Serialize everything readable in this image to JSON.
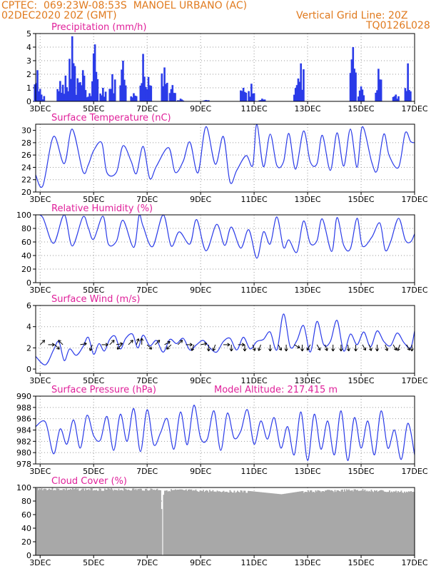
{
  "header": {
    "left_line1": "CPTEC:  069:23W-08:53S  MANOEL URBANO (AC)",
    "left_line2": "02DEC2020 20Z (GMT)",
    "right_line1": "Vertical Grid Line: 20Z",
    "right_line2": "TQ0126L028"
  },
  "colors": {
    "header": "#e07a1e",
    "title": "#e0209a",
    "series": "#2a3be8",
    "cloud": "#a8a8a8",
    "arrow": "#000000",
    "grid": "#9a9a9a"
  },
  "x_axis": {
    "day_start": 2.8333,
    "day_end": 17.0,
    "tick_days": [
      3,
      5,
      7,
      9,
      11,
      13,
      15,
      17
    ],
    "tick_labels": [
      "3DEC",
      "5DEC",
      "7DEC",
      "9DEC",
      "11DEC",
      "13DEC",
      "15DEC",
      "17DEC"
    ]
  },
  "panels": [
    {
      "key": "precip",
      "title": "Precipitation (mm/h)",
      "extra": "",
      "ymin": 0,
      "ymax": 5,
      "yticks": [
        0,
        1,
        2,
        3,
        4,
        5
      ]
    },
    {
      "key": "temp",
      "title": "Surface Temperature (nC)",
      "extra": "",
      "ymin": 20,
      "ymax": 31,
      "yticks": [
        20,
        22,
        24,
        26,
        28,
        30
      ]
    },
    {
      "key": "rh",
      "title": "Relative Humidity (%)",
      "extra": "",
      "ymin": 0,
      "ymax": 100,
      "yticks": [
        0,
        20,
        40,
        60,
        80,
        100
      ]
    },
    {
      "key": "wind",
      "title": "Surface Wind (m/s)",
      "extra": "",
      "ymin": -0.4,
      "ymax": 6,
      "yticks": [
        0,
        2,
        4,
        6
      ]
    },
    {
      "key": "pres",
      "title": "Surface Pressure (hPa)",
      "extra": "Model Altitude: 217.415 m",
      "ymin": 978,
      "ymax": 990,
      "yticks": [
        978,
        980,
        982,
        984,
        986,
        988,
        990
      ]
    },
    {
      "key": "cloud",
      "title": "Cloud Cover (%)",
      "extra": "",
      "ymin": 0,
      "ymax": 100,
      "yticks": [
        0,
        20,
        40,
        60,
        80,
        100
      ]
    }
  ],
  "chart_data": [
    {
      "type": "bar",
      "title": "Precipitation (mm/h)",
      "ylim": [
        0,
        5
      ],
      "x_unit": "day of December 2020",
      "bursts": [
        {
          "day": 2.9,
          "peak": 2.3
        },
        {
          "day": 3.05,
          "peak": 0.5
        },
        {
          "day": 3.75,
          "peak": 1.5
        },
        {
          "day": 3.95,
          "peak": 1.9
        },
        {
          "day": 4.2,
          "peak": 4.8
        },
        {
          "day": 4.4,
          "peak": 1.7
        },
        {
          "day": 4.6,
          "peak": 2.3
        },
        {
          "day": 4.85,
          "peak": 0.6
        },
        {
          "day": 5.05,
          "peak": 4.2
        },
        {
          "day": 5.35,
          "peak": 1.0
        },
        {
          "day": 5.7,
          "peak": 2.0
        },
        {
          "day": 6.1,
          "peak": 3.0
        },
        {
          "day": 6.5,
          "peak": 0.6
        },
        {
          "day": 6.85,
          "peak": 3.5
        },
        {
          "day": 7.05,
          "peak": 1.8
        },
        {
          "day": 7.65,
          "peak": 2.5
        },
        {
          "day": 7.95,
          "peak": 1.2
        },
        {
          "day": 8.25,
          "peak": 0.2
        },
        {
          "day": 9.2,
          "peak": 0.1
        },
        {
          "day": 10.6,
          "peak": 1.0
        },
        {
          "day": 10.9,
          "peak": 1.3
        },
        {
          "day": 11.3,
          "peak": 0.2
        },
        {
          "day": 12.6,
          "peak": 1.2
        },
        {
          "day": 12.75,
          "peak": 2.8
        },
        {
          "day": 14.7,
          "peak": 4.0
        },
        {
          "day": 15.0,
          "peak": 1.1
        },
        {
          "day": 15.65,
          "peak": 2.4
        },
        {
          "day": 16.3,
          "peak": 0.5
        },
        {
          "day": 16.75,
          "peak": 2.8
        }
      ]
    },
    {
      "type": "line",
      "title": "Surface Temperature (nC)",
      "ylim": [
        20,
        31
      ],
      "x": [
        2.83,
        3.1,
        3.5,
        3.9,
        4.2,
        4.6,
        4.8,
        5.0,
        5.3,
        5.5,
        5.85,
        6.1,
        6.4,
        6.6,
        6.85,
        7.1,
        7.35,
        7.8,
        8.05,
        8.35,
        8.6,
        8.9,
        9.2,
        9.55,
        9.85,
        10.1,
        10.35,
        10.7,
        10.95,
        11.1,
        11.35,
        11.6,
        11.85,
        12.1,
        12.3,
        12.55,
        12.85,
        13.1,
        13.35,
        13.55,
        13.85,
        14.1,
        14.35,
        14.6,
        14.85,
        15.05,
        15.4,
        15.6,
        15.85,
        16.05,
        16.4,
        16.65,
        16.85,
        17.0
      ],
      "y": [
        22.8,
        21.0,
        29.0,
        24.6,
        30.2,
        23.3,
        24.4,
        26.7,
        28.0,
        23.1,
        23.2,
        27.5,
        25.0,
        23.0,
        27.4,
        22.2,
        24.2,
        27.2,
        23.2,
        25.0,
        28.1,
        23.1,
        30.6,
        24.5,
        29.0,
        21.6,
        23.5,
        25.9,
        24.3,
        31.0,
        24.1,
        29.4,
        24.3,
        24.9,
        29.5,
        23.7,
        29.9,
        24.9,
        24.6,
        29.2,
        23.5,
        29.6,
        24.2,
        30.2,
        24.0,
        30.6,
        24.8,
        23.5,
        29.4,
        25.9,
        24.0,
        29.6,
        28.2,
        28.0
      ]
    },
    {
      "type": "line",
      "title": "Relative Humidity (%)",
      "ylim": [
        0,
        100
      ],
      "x": [
        2.83,
        3.1,
        3.5,
        3.9,
        4.2,
        4.6,
        4.8,
        5.0,
        5.35,
        5.55,
        5.85,
        6.1,
        6.5,
        6.7,
        6.85,
        7.2,
        7.6,
        7.9,
        8.2,
        8.6,
        8.85,
        9.2,
        9.6,
        9.9,
        10.15,
        10.5,
        10.8,
        11.1,
        11.35,
        11.6,
        11.85,
        12.1,
        12.3,
        12.6,
        12.85,
        13.1,
        13.35,
        13.55,
        13.9,
        14.1,
        14.35,
        14.6,
        14.85,
        15.05,
        15.4,
        15.7,
        15.9,
        16.1,
        16.4,
        16.65,
        16.85,
        17.0
      ],
      "y": [
        100,
        96,
        58,
        100,
        54,
        97,
        81,
        64,
        98,
        57,
        61,
        92,
        52,
        99,
        83,
        53,
        100,
        54,
        75,
        57,
        93,
        47,
        86,
        55,
        82,
        51,
        78,
        36,
        75,
        57,
        97,
        52,
        63,
        45,
        91,
        58,
        62,
        94,
        46,
        96,
        55,
        50,
        95,
        54,
        67,
        88,
        48,
        60,
        95,
        63,
        60,
        72
      ]
    },
    {
      "type": "line",
      "title": "Surface Wind (m/s)",
      "ylim": [
        -0.4,
        6
      ],
      "x": [
        2.83,
        3.2,
        3.5,
        3.7,
        3.9,
        4.1,
        4.35,
        4.6,
        4.8,
        5.0,
        5.2,
        5.4,
        5.6,
        5.8,
        6.0,
        6.2,
        6.45,
        6.65,
        6.85,
        7.1,
        7.35,
        7.6,
        7.85,
        8.1,
        8.35,
        8.6,
        8.85,
        9.1,
        9.35,
        9.6,
        9.85,
        10.1,
        10.35,
        10.6,
        10.85,
        11.1,
        11.35,
        11.6,
        11.85,
        12.1,
        12.35,
        12.6,
        12.85,
        13.1,
        13.35,
        13.6,
        13.85,
        14.1,
        14.35,
        14.6,
        14.85,
        15.1,
        15.35,
        15.6,
        15.85,
        16.1,
        16.35,
        16.6,
        16.85,
        17.0
      ],
      "y": [
        1.2,
        0.4,
        1.8,
        2.6,
        0.8,
        1.9,
        1.3,
        2.1,
        3.0,
        1.4,
        2.4,
        1.7,
        2.8,
        3.1,
        1.9,
        2.9,
        3.3,
        2.0,
        3.2,
        2.2,
        2.7,
        1.6,
        2.8,
        2.4,
        2.9,
        1.8,
        2.3,
        2.7,
        2.0,
        1.6,
        2.6,
        2.9,
        1.8,
        3.0,
        1.9,
        2.6,
        2.8,
        3.5,
        1.8,
        5.2,
        2.1,
        2.7,
        4.1,
        1.6,
        4.5,
        2.3,
        2.6,
        4.6,
        1.7,
        3.3,
        2.3,
        3.5,
        2.1,
        3.6,
        2.6,
        2.2,
        3.4,
        2.5,
        2.0,
        3.6
      ]
    },
    {
      "type": "line",
      "title": "Surface Pressure (hPa)",
      "ylim": [
        978,
        990
      ],
      "x": [
        2.83,
        3.2,
        3.5,
        3.75,
        4.0,
        4.25,
        4.5,
        4.75,
        5.0,
        5.25,
        5.5,
        5.75,
        6.0,
        6.25,
        6.5,
        6.75,
        7.0,
        7.25,
        7.5,
        7.75,
        8.0,
        8.25,
        8.5,
        8.75,
        9.0,
        9.25,
        9.5,
        9.75,
        10.0,
        10.25,
        10.5,
        10.75,
        11.0,
        11.25,
        11.5,
        11.75,
        12.0,
        12.25,
        12.5,
        12.75,
        13.0,
        13.25,
        13.5,
        13.75,
        14.0,
        14.25,
        14.5,
        14.75,
        15.0,
        15.25,
        15.5,
        15.75,
        16.0,
        16.25,
        16.5,
        16.75,
        17.0
      ],
      "y": [
        984.6,
        985.4,
        979.8,
        984.2,
        981.5,
        985.8,
        980.8,
        986.6,
        983.0,
        982.2,
        986.4,
        980.4,
        986.8,
        982.0,
        987.8,
        980.2,
        987.6,
        981.4,
        983.5,
        986.0,
        980.6,
        987.2,
        981.4,
        988.4,
        982.6,
        982.4,
        987.4,
        980.4,
        987.0,
        982.6,
        983.8,
        987.6,
        981.5,
        985.6,
        982.4,
        986.2,
        980.8,
        984.6,
        979.6,
        987.2,
        978.6,
        986.8,
        980.6,
        985.6,
        979.6,
        987.4,
        978.6,
        986.2,
        980.8,
        985.6,
        979.6,
        987.4,
        980.8,
        984.0,
        978.8,
        985.2,
        979.6
      ]
    },
    {
      "type": "area",
      "title": "Cloud Cover (%)",
      "ylim": [
        0,
        100
      ],
      "x": [
        2.83,
        4.0,
        6.0,
        7.5,
        7.55,
        7.6,
        9.0,
        10.5,
        11.0,
        12.0,
        13.0,
        14.0,
        15.0,
        16.0,
        17.0
      ],
      "y": [
        100,
        99,
        99,
        99,
        0,
        98,
        97,
        96,
        94,
        90,
        96,
        97,
        98,
        96,
        95
      ]
    }
  ],
  "wind_vectors": [
    {
      "day": 3.0,
      "dir": 45
    },
    {
      "day": 3.3,
      "dir": 90
    },
    {
      "day": 3.55,
      "dir": 135
    },
    {
      "day": 3.85,
      "dir": 315
    },
    {
      "day": 4.5,
      "dir": 80
    },
    {
      "day": 4.95,
      "dir": 200
    },
    {
      "day": 5.3,
      "dir": 90
    },
    {
      "day": 5.6,
      "dir": 45
    },
    {
      "day": 5.85,
      "dir": 80
    },
    {
      "day": 6.05,
      "dir": 225
    },
    {
      "day": 6.3,
      "dir": 45
    },
    {
      "day": 6.6,
      "dir": 20
    },
    {
      "day": 6.8,
      "dir": 0
    },
    {
      "day": 7.0,
      "dir": 135
    },
    {
      "day": 7.3,
      "dir": 45
    },
    {
      "day": 7.65,
      "dir": 60
    },
    {
      "day": 7.9,
      "dir": 225
    },
    {
      "day": 8.15,
      "dir": 45
    },
    {
      "day": 8.45,
      "dir": 90
    },
    {
      "day": 8.75,
      "dir": 200
    },
    {
      "day": 9.0,
      "dir": 80
    },
    {
      "day": 9.3,
      "dir": 180
    },
    {
      "day": 9.55,
      "dir": 200
    },
    {
      "day": 9.85,
      "dir": 90
    },
    {
      "day": 10.15,
      "dir": 180
    },
    {
      "day": 10.4,
      "dir": 90
    },
    {
      "day": 10.65,
      "dir": 180
    },
    {
      "day": 10.95,
      "dir": 160
    },
    {
      "day": 11.25,
      "dir": 200
    },
    {
      "day": 11.6,
      "dir": 180
    },
    {
      "day": 11.9,
      "dir": 150
    },
    {
      "day": 12.2,
      "dir": 180
    },
    {
      "day": 12.5,
      "dir": 120
    },
    {
      "day": 12.8,
      "dir": 180
    },
    {
      "day": 13.1,
      "dir": 210
    },
    {
      "day": 13.35,
      "dir": 150
    },
    {
      "day": 13.65,
      "dir": 160
    },
    {
      "day": 13.95,
      "dir": 180
    },
    {
      "day": 14.25,
      "dir": 180
    },
    {
      "day": 14.5,
      "dir": 170
    },
    {
      "day": 14.8,
      "dir": 180
    },
    {
      "day": 15.05,
      "dir": 150
    },
    {
      "day": 15.3,
      "dir": 160
    },
    {
      "day": 15.6,
      "dir": 180
    },
    {
      "day": 15.9,
      "dir": 160
    },
    {
      "day": 16.2,
      "dir": 150
    },
    {
      "day": 16.45,
      "dir": 200
    },
    {
      "day": 16.7,
      "dir": 150
    },
    {
      "day": 16.9,
      "dir": 180
    }
  ]
}
